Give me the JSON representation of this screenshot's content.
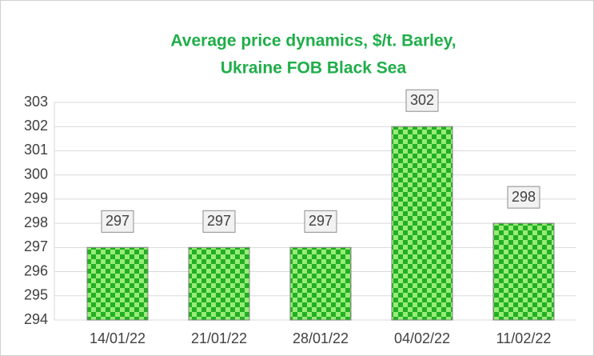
{
  "chart_data": {
    "type": "bar",
    "title": [
      "Average price dynamics, $/t.  Barley,",
      "Ukraine FOB Black Sea"
    ],
    "categories": [
      "14/01/22",
      "21/01/22",
      "28/01/22",
      "04/02/22",
      "11/02/22"
    ],
    "values": [
      297,
      297,
      297,
      302,
      298
    ],
    "color": "#2db52d",
    "ylim": [
      294,
      303
    ],
    "yticks": [
      294,
      295,
      296,
      297,
      298,
      299,
      300,
      301,
      302,
      303
    ],
    "grid": true
  }
}
